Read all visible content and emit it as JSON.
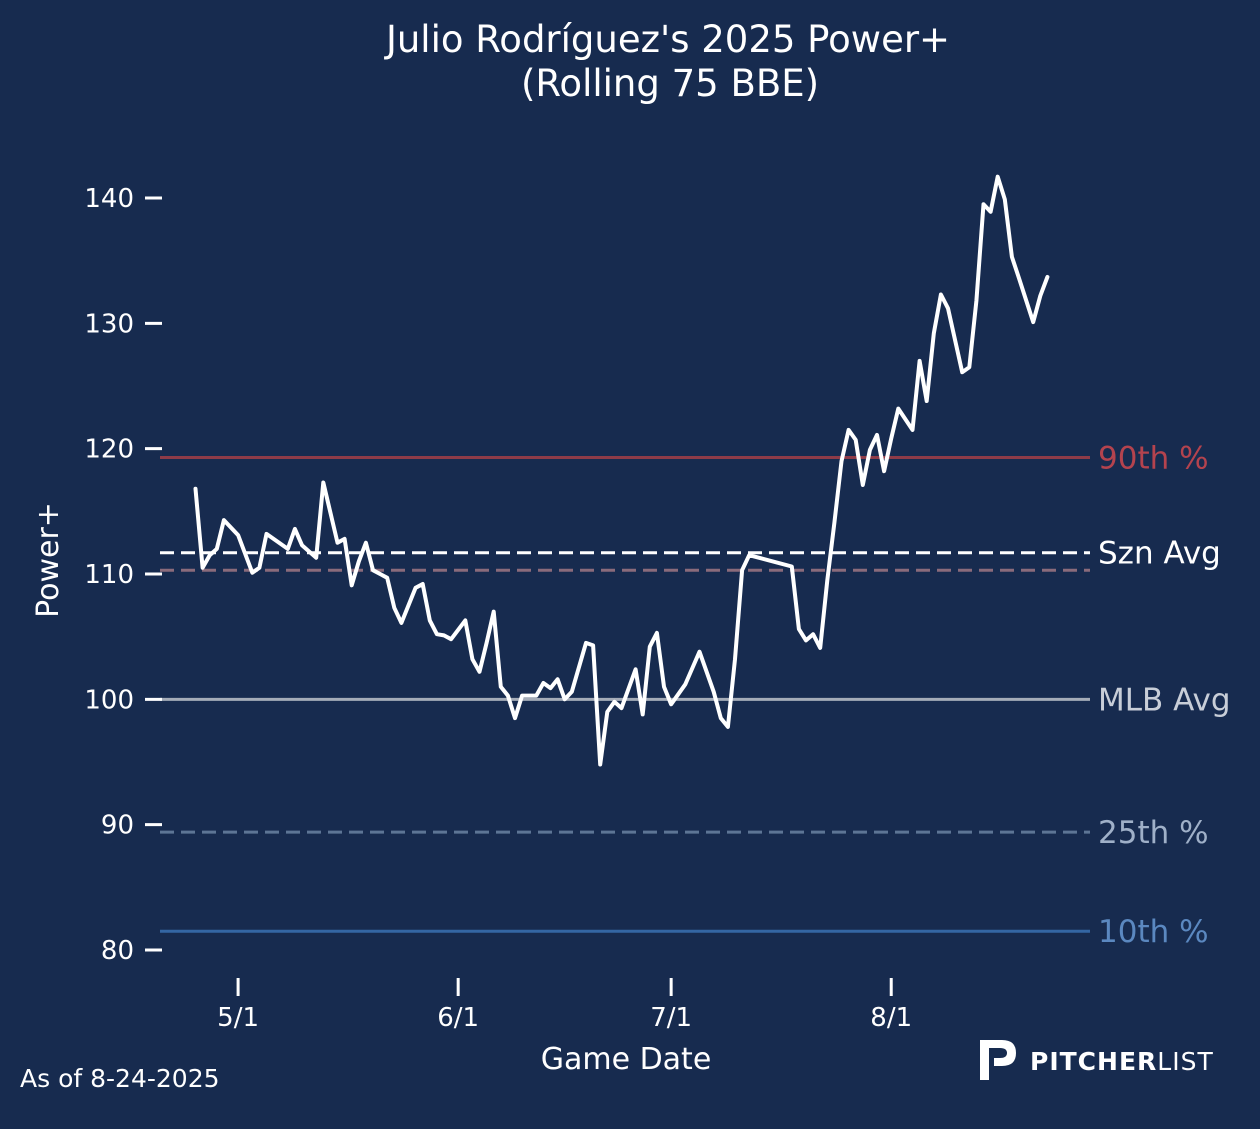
{
  "chart_data": {
    "type": "line",
    "title_line1": "Julio Rodríguez's 2025 Power+",
    "title_line2": "(Rolling 75 BBE)",
    "xlabel": "Game Date",
    "ylabel": "Power+",
    "ylim": [
      78,
      145
    ],
    "yticks": [
      80,
      90,
      100,
      110,
      120,
      130,
      140
    ],
    "x_domain": [
      "2025-04-20",
      "2025-08-29"
    ],
    "xticks": [
      {
        "date": "2025-05-01",
        "label": "5/1"
      },
      {
        "date": "2025-06-01",
        "label": "6/1"
      },
      {
        "date": "2025-07-01",
        "label": "7/1"
      },
      {
        "date": "2025-08-01",
        "label": "8/1"
      }
    ],
    "grid": false,
    "reference_lines": [
      {
        "label": "90th %",
        "value": 119.3,
        "color": "#8e3b48",
        "label_color": "#b4434e",
        "dash": false
      },
      {
        "label": "Szn Avg",
        "value": 111.7,
        "color": "#ffffff",
        "label_color": "#ffffff",
        "dash": true
      },
      {
        "label": "",
        "value": 110.3,
        "color": "#8a6b7b",
        "label_color": "#8a6b7b",
        "dash": true
      },
      {
        "label": "MLB Avg",
        "value": 100.0,
        "color": "#a5acb8",
        "label_color": "#c8ced8",
        "dash": false
      },
      {
        "label": "25th %",
        "value": 89.4,
        "color": "#5d7595",
        "label_color": "#9fb0c8",
        "dash": true
      },
      {
        "label": "10th %",
        "value": 81.5,
        "color": "#3466a3",
        "label_color": "#5b88c0",
        "dash": false
      }
    ],
    "series": [
      {
        "color": "#ffffff",
        "points": [
          [
            "2025-04-25",
            116.8
          ],
          [
            "2025-04-26",
            110.5
          ],
          [
            "2025-04-27",
            111.5
          ],
          [
            "2025-04-28",
            112.0
          ],
          [
            "2025-04-29",
            114.3
          ],
          [
            "2025-05-01",
            113.1
          ],
          [
            "2025-05-03",
            110.1
          ],
          [
            "2025-05-04",
            110.5
          ],
          [
            "2025-05-05",
            113.2
          ],
          [
            "2025-05-06",
            112.8
          ],
          [
            "2025-05-08",
            112.0
          ],
          [
            "2025-05-09",
            113.6
          ],
          [
            "2025-05-10",
            112.3
          ],
          [
            "2025-05-12",
            111.3
          ],
          [
            "2025-05-13",
            117.3
          ],
          [
            "2025-05-15",
            112.5
          ],
          [
            "2025-05-16",
            112.8
          ],
          [
            "2025-05-17",
            109.1
          ],
          [
            "2025-05-18",
            111.0
          ],
          [
            "2025-05-19",
            112.5
          ],
          [
            "2025-05-20",
            110.3
          ],
          [
            "2025-05-22",
            109.7
          ],
          [
            "2025-05-23",
            107.3
          ],
          [
            "2025-05-24",
            106.1
          ],
          [
            "2025-05-26",
            108.9
          ],
          [
            "2025-05-27",
            109.2
          ],
          [
            "2025-05-28",
            106.3
          ],
          [
            "2025-05-29",
            105.2
          ],
          [
            "2025-05-30",
            105.1
          ],
          [
            "2025-05-31",
            104.8
          ],
          [
            "2025-06-02",
            106.3
          ],
          [
            "2025-06-03",
            103.2
          ],
          [
            "2025-06-04",
            102.2
          ],
          [
            "2025-06-05",
            104.5
          ],
          [
            "2025-06-06",
            107.0
          ],
          [
            "2025-06-07",
            101.0
          ],
          [
            "2025-06-08",
            100.3
          ],
          [
            "2025-06-09",
            98.5
          ],
          [
            "2025-06-10",
            100.3
          ],
          [
            "2025-06-12",
            100.3
          ],
          [
            "2025-06-13",
            101.3
          ],
          [
            "2025-06-14",
            100.9
          ],
          [
            "2025-06-15",
            101.6
          ],
          [
            "2025-06-16",
            100.0
          ],
          [
            "2025-06-17",
            100.6
          ],
          [
            "2025-06-19",
            104.5
          ],
          [
            "2025-06-20",
            104.3
          ],
          [
            "2025-06-21",
            94.8
          ],
          [
            "2025-06-22",
            99.0
          ],
          [
            "2025-06-23",
            99.8
          ],
          [
            "2025-06-24",
            99.3
          ],
          [
            "2025-06-26",
            102.4
          ],
          [
            "2025-06-27",
            98.8
          ],
          [
            "2025-06-28",
            104.2
          ],
          [
            "2025-06-29",
            105.3
          ],
          [
            "2025-06-30",
            101.0
          ],
          [
            "2025-07-01",
            99.6
          ],
          [
            "2025-07-03",
            101.2
          ],
          [
            "2025-07-04",
            102.5
          ],
          [
            "2025-07-05",
            103.8
          ],
          [
            "2025-07-07",
            100.6
          ],
          [
            "2025-07-08",
            98.5
          ],
          [
            "2025-07-09",
            97.8
          ],
          [
            "2025-07-10",
            103.2
          ],
          [
            "2025-07-11",
            110.3
          ],
          [
            "2025-07-12",
            111.5
          ],
          [
            "2025-07-18",
            110.6
          ],
          [
            "2025-07-19",
            105.6
          ],
          [
            "2025-07-20",
            104.7
          ],
          [
            "2025-07-21",
            105.2
          ],
          [
            "2025-07-22",
            104.1
          ],
          [
            "2025-07-23",
            109.5
          ],
          [
            "2025-07-24",
            114.1
          ],
          [
            "2025-07-25",
            119.0
          ],
          [
            "2025-07-26",
            121.5
          ],
          [
            "2025-07-27",
            120.7
          ],
          [
            "2025-07-28",
            117.1
          ],
          [
            "2025-07-29",
            119.9
          ],
          [
            "2025-07-30",
            121.1
          ],
          [
            "2025-07-31",
            118.2
          ],
          [
            "2025-08-01",
            120.8
          ],
          [
            "2025-08-02",
            123.2
          ],
          [
            "2025-08-04",
            121.5
          ],
          [
            "2025-08-05",
            127.0
          ],
          [
            "2025-08-06",
            123.8
          ],
          [
            "2025-08-07",
            129.2
          ],
          [
            "2025-08-08",
            132.3
          ],
          [
            "2025-08-09",
            131.2
          ],
          [
            "2025-08-11",
            126.1
          ],
          [
            "2025-08-12",
            126.5
          ],
          [
            "2025-08-13",
            131.8
          ],
          [
            "2025-08-14",
            139.5
          ],
          [
            "2025-08-15",
            138.9
          ],
          [
            "2025-08-16",
            141.7
          ],
          [
            "2025-08-17",
            139.9
          ],
          [
            "2025-08-18",
            135.3
          ],
          [
            "2025-08-19",
            133.6
          ],
          [
            "2025-08-21",
            130.1
          ],
          [
            "2025-08-22",
            132.2
          ],
          [
            "2025-08-23",
            133.7
          ]
        ]
      }
    ]
  },
  "footer": {
    "as_of": "As of 8-24-2025",
    "brand_bold": "PITCHER",
    "brand_light": "LIST"
  }
}
